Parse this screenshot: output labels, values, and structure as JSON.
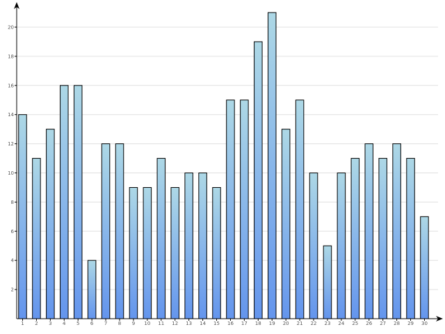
{
  "chart_data": {
    "type": "bar",
    "title": "",
    "xlabel": "",
    "ylabel": "",
    "categories": [
      "1",
      "2",
      "3",
      "4",
      "5",
      "6",
      "7",
      "8",
      "9",
      "10",
      "11",
      "12",
      "13",
      "14",
      "15",
      "16",
      "17",
      "18",
      "19",
      "20",
      "21",
      "22",
      "23",
      "24",
      "25",
      "26",
      "27",
      "28",
      "29",
      "30"
    ],
    "values": [
      14,
      11,
      13,
      16,
      16,
      4,
      12,
      12,
      9,
      9,
      11,
      9,
      10,
      10,
      9,
      15,
      15,
      19,
      21,
      13,
      15,
      10,
      5,
      10,
      11,
      12,
      11,
      12,
      11,
      7
    ],
    "ylim": [
      0,
      21
    ],
    "yticks": [
      "2",
      "4",
      "6",
      "8",
      "10",
      "12",
      "14",
      "16",
      "18",
      "20"
    ],
    "grid": true,
    "colors": {
      "bar_top": "#add8e6",
      "bar_bottom": "#6495ed",
      "bar_stroke": "#000000",
      "grid": "#e0e0e0",
      "axis": "#000000"
    }
  }
}
